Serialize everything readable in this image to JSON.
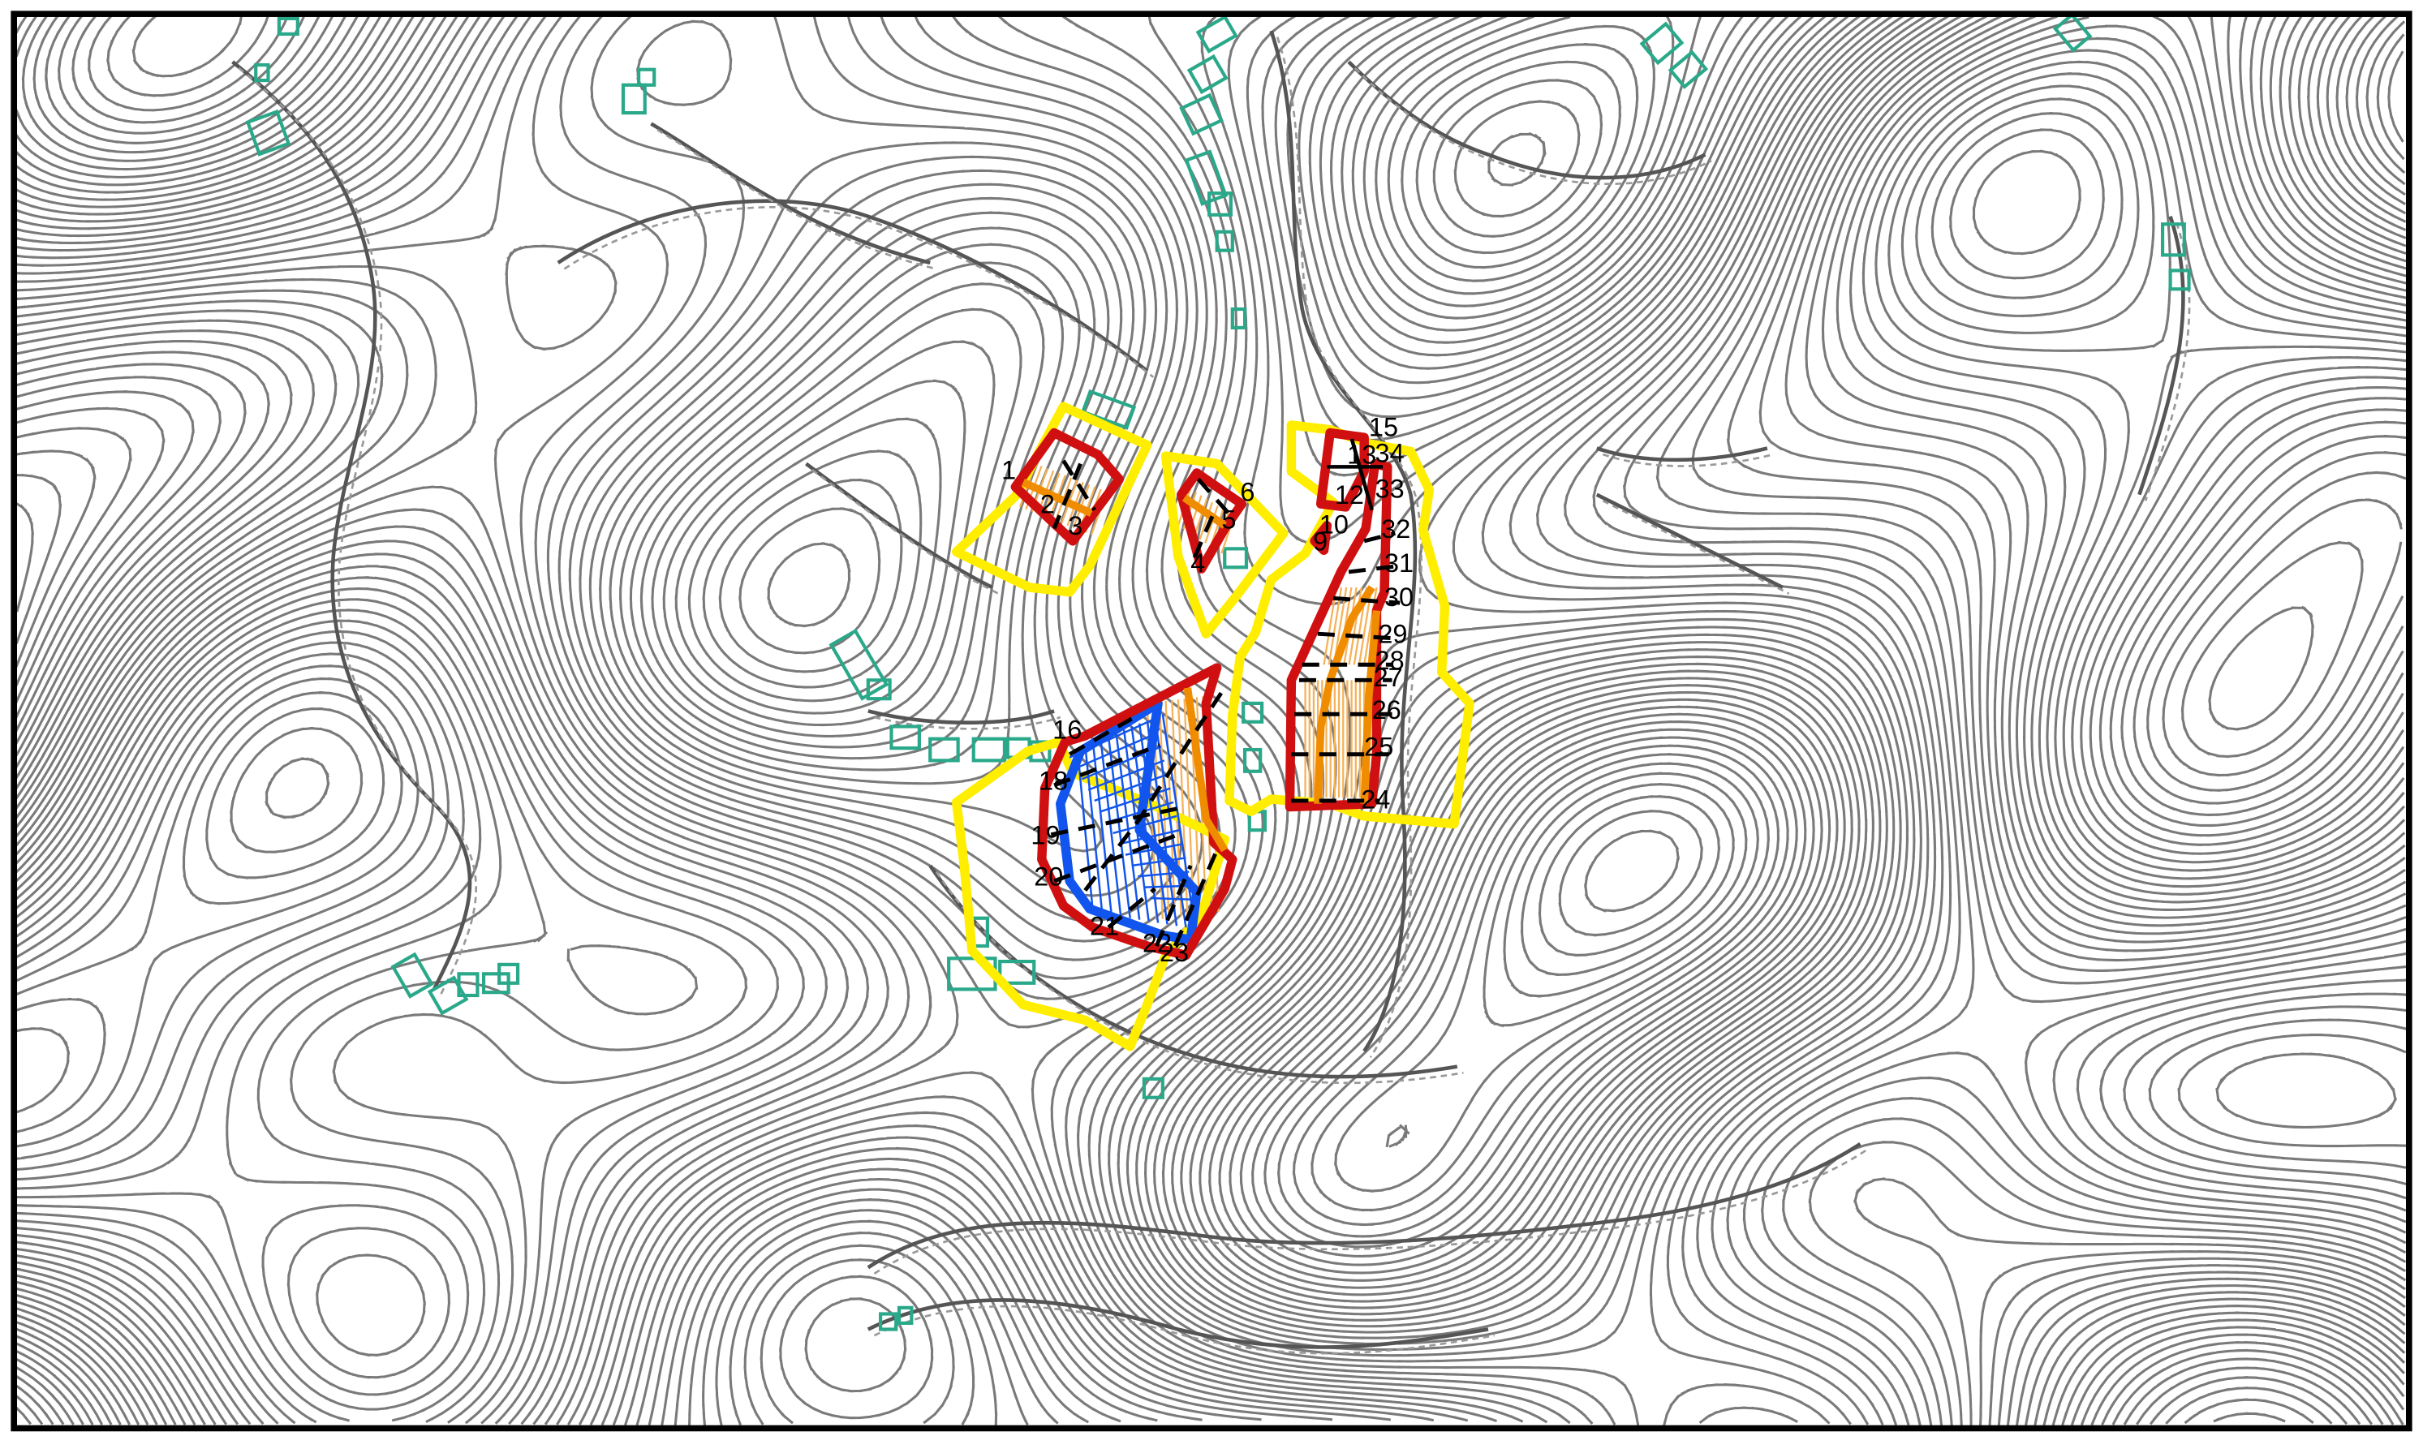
{
  "map": {
    "colors": {
      "boundary": "#ffee00",
      "area_outline": "#d01010",
      "inner_band": "#f08c00",
      "special_zone": "#1155ee",
      "buildings": "#2aa88a",
      "contours": "#7a7a7a"
    },
    "labels": [
      {
        "key": "1",
        "text": "1"
      },
      {
        "key": "2",
        "text": "2"
      },
      {
        "key": "3",
        "text": "3"
      },
      {
        "key": "4",
        "text": "4"
      },
      {
        "key": "5",
        "text": "5"
      },
      {
        "key": "6",
        "text": "6"
      },
      {
        "key": "9",
        "text": "9"
      },
      {
        "key": "10",
        "text": "10"
      },
      {
        "key": "12",
        "text": "12"
      },
      {
        "key": "13",
        "text": "13"
      },
      {
        "key": "15",
        "text": "15"
      },
      {
        "key": "16",
        "text": "16"
      },
      {
        "key": "18",
        "text": "18"
      },
      {
        "key": "19",
        "text": "19"
      },
      {
        "key": "20",
        "text": "20"
      },
      {
        "key": "21",
        "text": "21"
      },
      {
        "key": "22",
        "text": "22"
      },
      {
        "key": "23",
        "text": "23"
      },
      {
        "key": "24",
        "text": "24"
      },
      {
        "key": "25",
        "text": "25"
      },
      {
        "key": "26",
        "text": "26"
      },
      {
        "key": "27",
        "text": "27"
      },
      {
        "key": "28",
        "text": "28"
      },
      {
        "key": "29",
        "text": "29"
      },
      {
        "key": "30",
        "text": "30"
      },
      {
        "key": "31",
        "text": "31"
      },
      {
        "key": "32",
        "text": "32"
      },
      {
        "key": "33",
        "text": "33"
      },
      {
        "key": "34",
        "text": "34"
      }
    ]
  }
}
